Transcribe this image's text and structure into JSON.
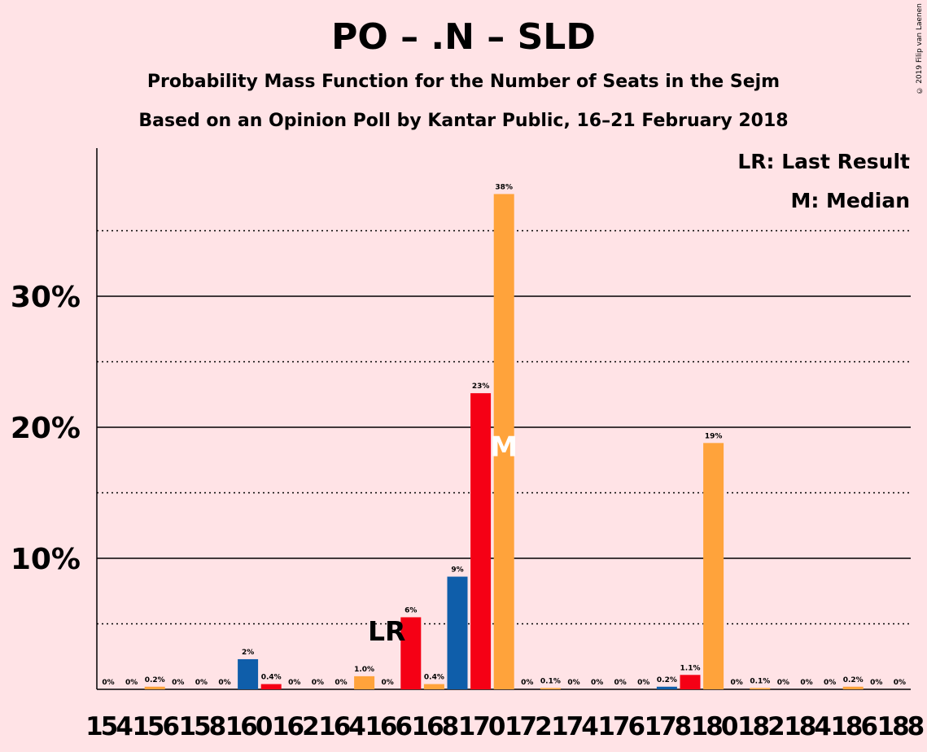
{
  "title": "PO – .N – SLD",
  "subtitle": "Probability Mass Function for the Number of Seats in the Sejm",
  "subtitle2": "Based on an Opinion Poll by Kantar Public, 16–21 February 2018",
  "credit": "© 2019 Filip van Laenen",
  "legend": {
    "last_result": "LR: Last Result",
    "median": "M: Median"
  },
  "colors": {
    "background": "#FFE3E6",
    "po_blue": "#0F5EAA",
    "n_red": "#F50015",
    "sld_orange": "#FFA33B"
  },
  "chart_data": {
    "type": "bar",
    "ylim": [
      0,
      40
    ],
    "yticks": [
      {
        "value": 10,
        "label": "10%"
      },
      {
        "value": 20,
        "label": "20%"
      },
      {
        "value": 30,
        "label": "30%"
      }
    ],
    "minor_gridlines": [
      5,
      15,
      25,
      35
    ],
    "x_tick_labels": [
      "154",
      "156",
      "158",
      "160",
      "162",
      "164",
      "166",
      "168",
      "170",
      "172",
      "174",
      "176",
      "178",
      "180",
      "182",
      "184",
      "186",
      "188"
    ],
    "bars": [
      {
        "seats": 154,
        "value": 0,
        "label": "0%",
        "color": "sld_orange"
      },
      {
        "seats": 155,
        "value": 0,
        "label": "0%",
        "color": "sld_orange"
      },
      {
        "seats": 156,
        "value": 0.2,
        "label": "0.2%",
        "color": "sld_orange"
      },
      {
        "seats": 157,
        "value": 0,
        "label": "0%",
        "color": "sld_orange"
      },
      {
        "seats": 158,
        "value": 0,
        "label": "0%",
        "color": "sld_orange"
      },
      {
        "seats": 159,
        "value": 0,
        "label": "0%",
        "color": "sld_orange"
      },
      {
        "seats": 160,
        "value": 2.3,
        "label": "2%",
        "color": "po_blue"
      },
      {
        "seats": 161,
        "value": 0.4,
        "label": "0.4%",
        "color": "n_red"
      },
      {
        "seats": 162,
        "value": 0,
        "label": "0%",
        "color": "sld_orange"
      },
      {
        "seats": 163,
        "value": 0,
        "label": "0%",
        "color": "sld_orange"
      },
      {
        "seats": 164,
        "value": 0,
        "label": "0%",
        "color": "sld_orange"
      },
      {
        "seats": 165,
        "value": 1.0,
        "label": "1.0%",
        "color": "sld_orange"
      },
      {
        "seats": 166,
        "value": 0,
        "label": "0%",
        "color": "sld_orange"
      },
      {
        "seats": 167,
        "value": 5.5,
        "label": "6%",
        "color": "n_red"
      },
      {
        "seats": 168,
        "value": 0.4,
        "label": "0.4%",
        "color": "sld_orange"
      },
      {
        "seats": 169,
        "value": 8.6,
        "label": "9%",
        "color": "po_blue"
      },
      {
        "seats": 170,
        "value": 22.6,
        "label": "23%",
        "color": "n_red"
      },
      {
        "seats": 171,
        "value": 37.8,
        "label": "38%",
        "color": "sld_orange"
      },
      {
        "seats": 172,
        "value": 0,
        "label": "0%",
        "color": "sld_orange"
      },
      {
        "seats": 173,
        "value": 0.1,
        "label": "0.1%",
        "color": "sld_orange"
      },
      {
        "seats": 174,
        "value": 0,
        "label": "0%",
        "color": "sld_orange"
      },
      {
        "seats": 175,
        "value": 0,
        "label": "0%",
        "color": "sld_orange"
      },
      {
        "seats": 176,
        "value": 0,
        "label": "0%",
        "color": "sld_orange"
      },
      {
        "seats": 177,
        "value": 0,
        "label": "0%",
        "color": "sld_orange"
      },
      {
        "seats": 178,
        "value": 0.2,
        "label": "0.2%",
        "color": "po_blue"
      },
      {
        "seats": 179,
        "value": 1.1,
        "label": "1.1%",
        "color": "n_red"
      },
      {
        "seats": 180,
        "value": 18.8,
        "label": "19%",
        "color": "sld_orange"
      },
      {
        "seats": 181,
        "value": 0,
        "label": "0%",
        "color": "sld_orange"
      },
      {
        "seats": 182,
        "value": 0.1,
        "label": "0.1%",
        "color": "sld_orange"
      },
      {
        "seats": 183,
        "value": 0,
        "label": "0%",
        "color": "sld_orange"
      },
      {
        "seats": 184,
        "value": 0,
        "label": "0%",
        "color": "sld_orange"
      },
      {
        "seats": 185,
        "value": 0,
        "label": "0%",
        "color": "sld_orange"
      },
      {
        "seats": 186,
        "value": 0.2,
        "label": "0.2%",
        "color": "sld_orange"
      },
      {
        "seats": 187,
        "value": 0,
        "label": "0%",
        "color": "sld_orange"
      },
      {
        "seats": 188,
        "value": 0,
        "label": "0%",
        "color": "sld_orange"
      }
    ],
    "last_result": {
      "seats": 166,
      "label": "LR"
    },
    "median": {
      "seats": 171,
      "label": "M"
    }
  }
}
